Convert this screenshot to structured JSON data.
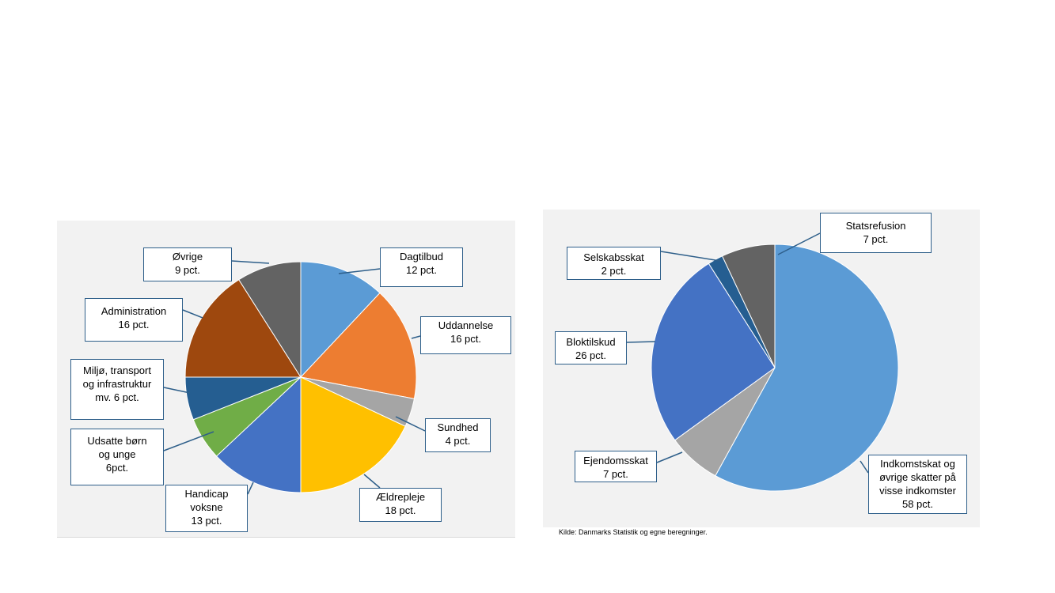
{
  "chart_data": [
    {
      "type": "pie",
      "title": "",
      "slices": [
        {
          "label": "Dagtilbud",
          "value_label": "12 pct.",
          "value": 12,
          "color": "#5b9bd5"
        },
        {
          "label": "Uddannelse",
          "value_label": "16 pct.",
          "value": 16,
          "color": "#ed7d31"
        },
        {
          "label": "Sundhed",
          "value_label": "4 pct.",
          "value": 4,
          "color": "#a5a5a5"
        },
        {
          "label": "Ældrepleje",
          "value_label": "18 pct.",
          "value": 18,
          "color": "#ffc000"
        },
        {
          "label": "Handicap voksne",
          "value_label": "13 pct.",
          "value": 13,
          "color": "#4472c4"
        },
        {
          "label": "Udsatte børn og unge",
          "value_label": "6pct.",
          "value": 6,
          "color": "#70ad47"
        },
        {
          "label": "Miljø, transport og infrastruktur mv.",
          "value_label": "6 pct.",
          "value": 6,
          "color": "#255e91"
        },
        {
          "label": "Administration",
          "value_label": "16 pct.",
          "value": 16,
          "color": "#9e480e"
        },
        {
          "label": "Øvrige",
          "value_label": "9 pct.",
          "value": 9,
          "color": "#636363"
        }
      ]
    },
    {
      "type": "pie",
      "title": "",
      "slices": [
        {
          "label": "Indkomstskat og øvrige skatter på visse indkomster",
          "value_label": "58 pct.",
          "value": 58,
          "color": "#5b9bd5"
        },
        {
          "label": "Ejendomsskat",
          "value_label": "7 pct.",
          "value": 7,
          "color": "#a5a5a5"
        },
        {
          "label": "Bloktilskud",
          "value_label": "26 pct.",
          "value": 26,
          "color": "#4472c4"
        },
        {
          "label": "Selskabsskat",
          "value_label": "2 pct.",
          "value": 2,
          "color": "#255e91"
        },
        {
          "label": "Statsrefusion",
          "value_label": "7 pct.",
          "value": 7,
          "color": "#636363"
        }
      ]
    }
  ],
  "left_callouts": {
    "dagtilbud": [
      "Dagtilbud",
      "12 pct."
    ],
    "uddannelse": [
      "Uddannelse",
      "16 pct."
    ],
    "sundhed": [
      "Sundhed",
      "4 pct."
    ],
    "aeldrepleje": [
      "Ældrepleje",
      "18 pct."
    ],
    "handicap": [
      "Handicap",
      "voksne",
      "13 pct."
    ],
    "udsatte": [
      "Udsatte børn",
      "og unge",
      "6pct."
    ],
    "miljoe": [
      "Miljø, transport",
      "og infrastruktur",
      "mv. 6 pct."
    ],
    "administration": [
      "Administration",
      "16 pct."
    ],
    "oevrige": [
      "Øvrige",
      "9 pct."
    ]
  },
  "right_callouts": {
    "statsrefusion": [
      "Statsrefusion",
      "7 pct."
    ],
    "selskabsskat": [
      "Selskabsskat",
      "2 pct."
    ],
    "bloktilskud": [
      "Bloktilskud",
      "26 pct."
    ],
    "ejendomsskat": [
      "Ejendomsskat",
      "7 pct."
    ],
    "indkomstskat": [
      "Indkomstskat og",
      "øvrige skatter på",
      "visse indkomster",
      "58 pct."
    ]
  },
  "source_note": "Kilde: Danmarks Statistik og egne beregninger."
}
